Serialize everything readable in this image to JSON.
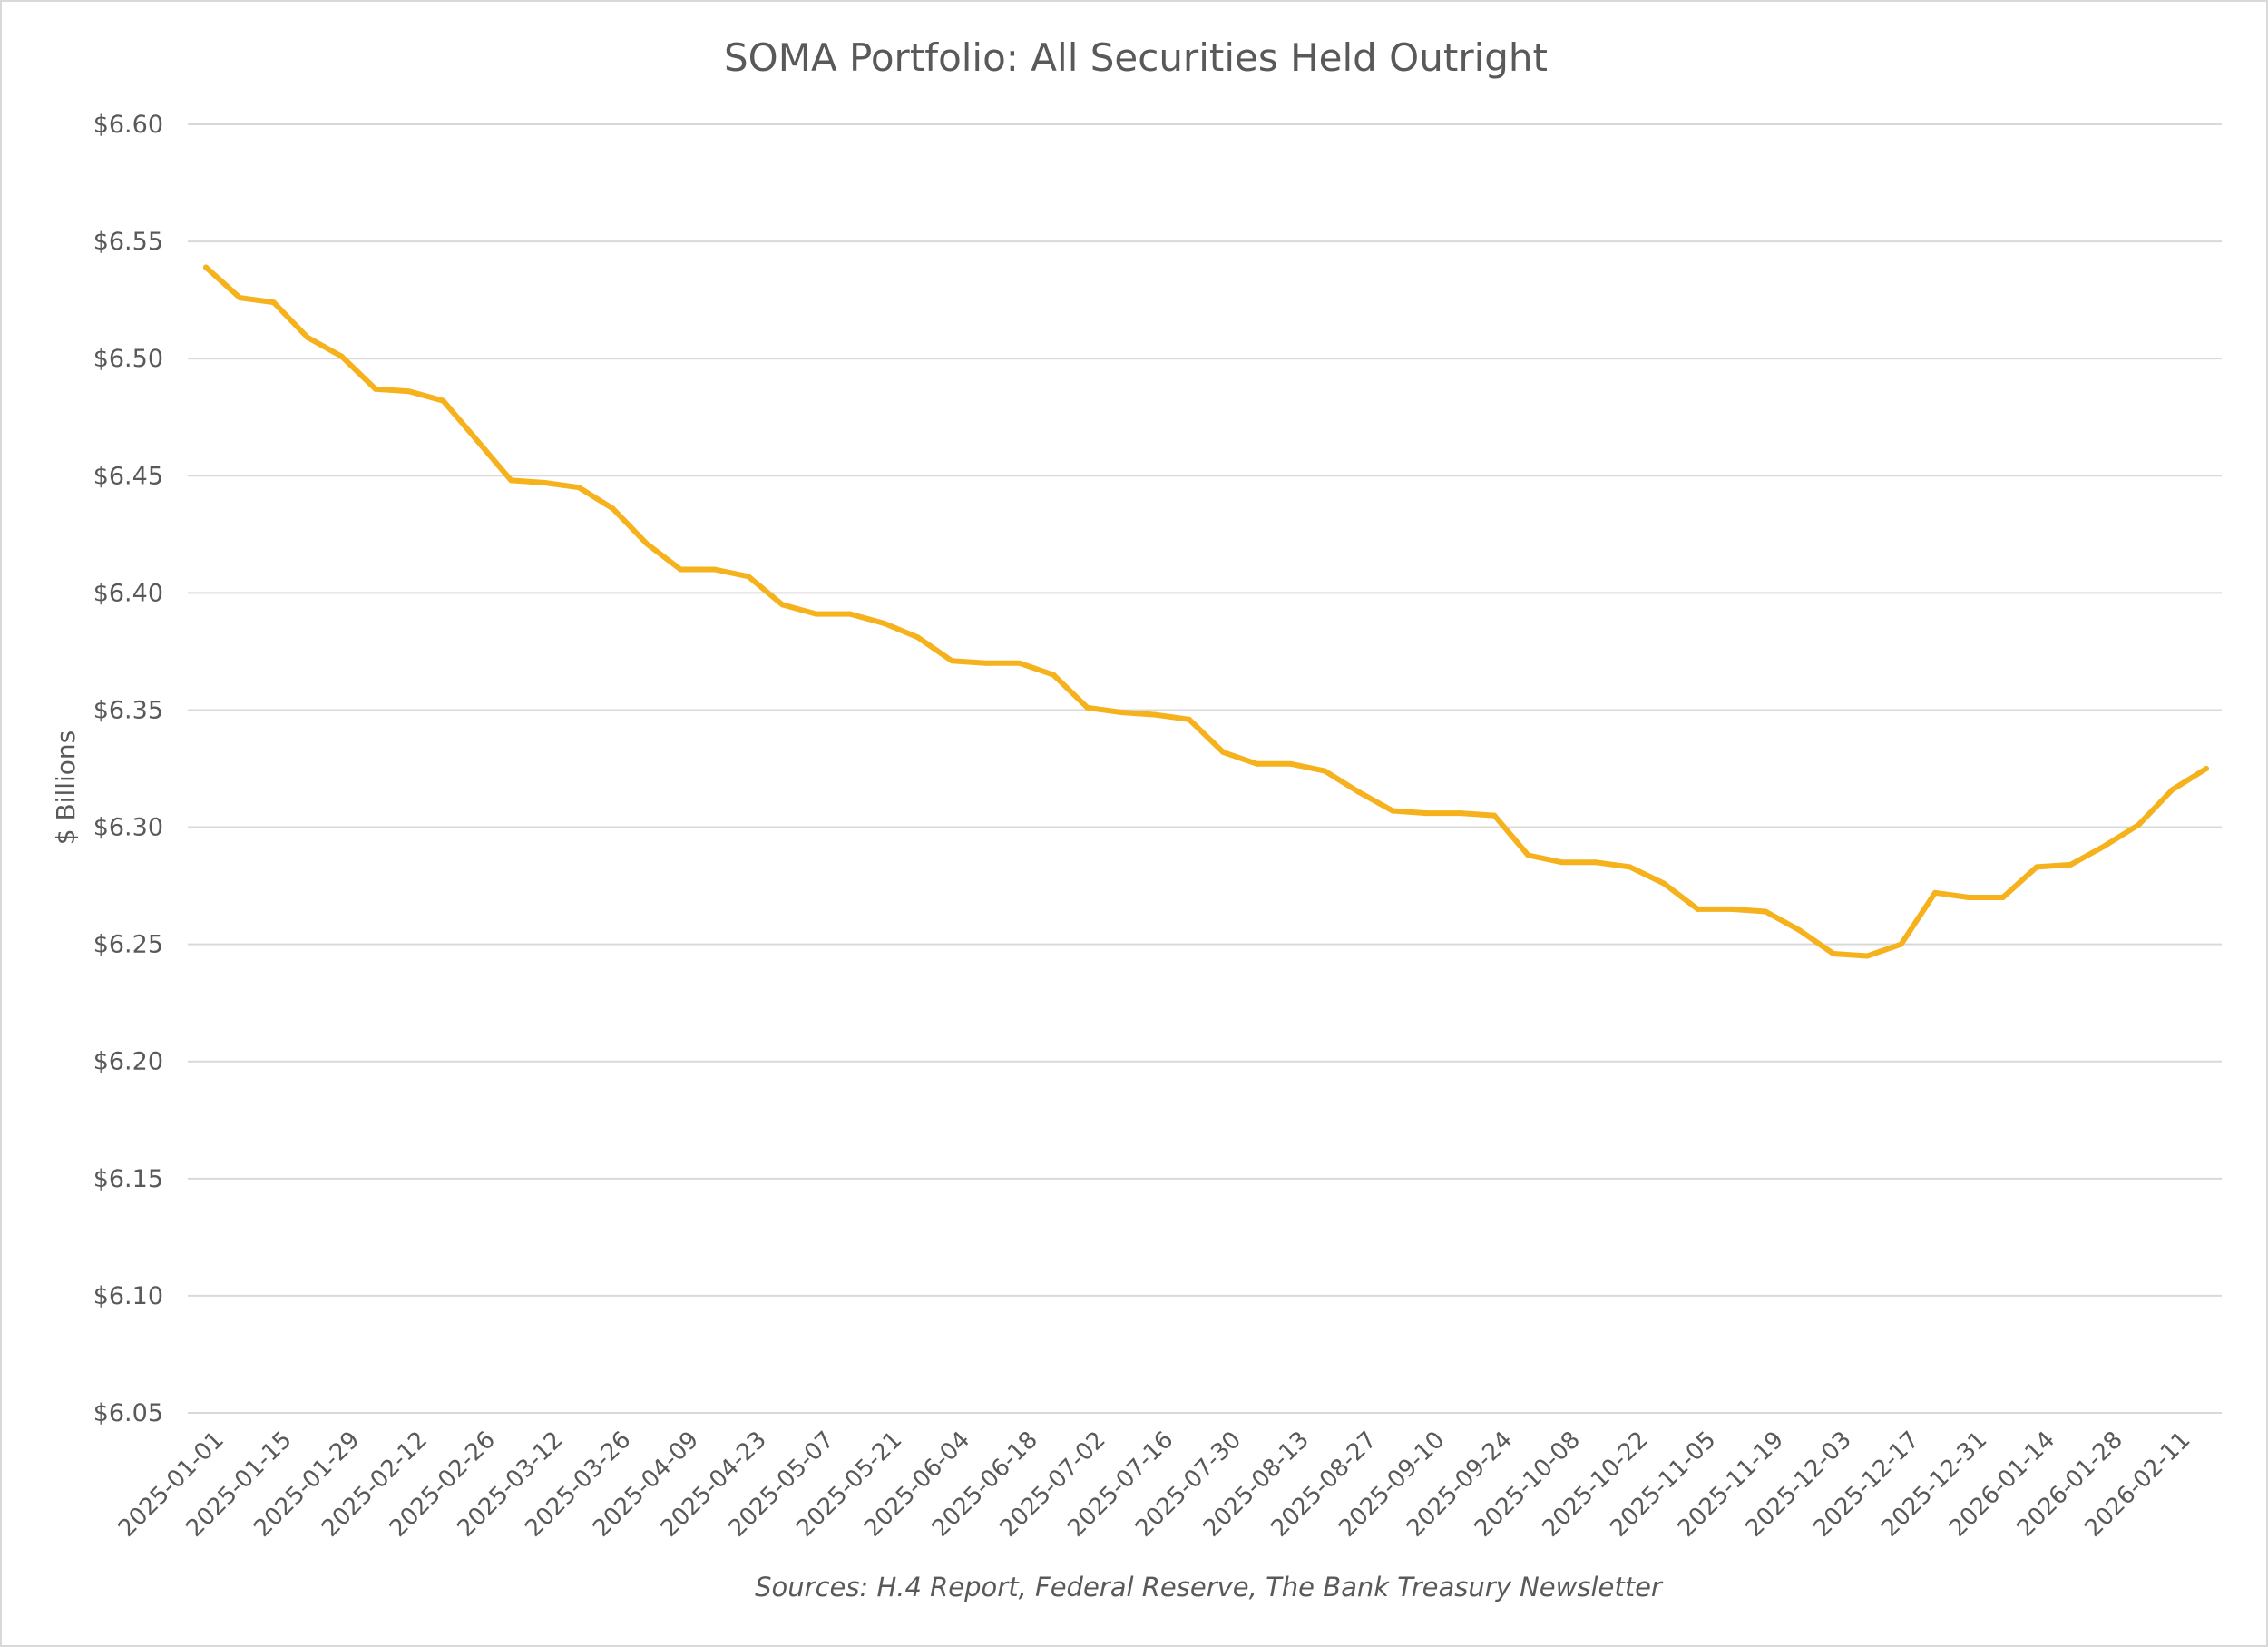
{
  "chart_data": {
    "type": "line",
    "title": "SOMA Portfolio: All Securities Held Outright",
    "xlabel": "",
    "ylabel": "$ Billions",
    "source": "Sources: H.4 Report, Federal Reserve, The Bank Treasury Newsletter",
    "ylim": [
      6.05,
      6.6
    ],
    "yticks": [
      "$6.05",
      "$6.10",
      "$6.15",
      "$6.20",
      "$6.25",
      "$6.30",
      "$6.35",
      "$6.40",
      "$6.45",
      "$6.50",
      "$6.55",
      "$6.60"
    ],
    "ytick_values": [
      6.05,
      6.1,
      6.15,
      6.2,
      6.25,
      6.3,
      6.35,
      6.4,
      6.45,
      6.5,
      6.55,
      6.6
    ],
    "grid": true,
    "line_color": "#f5b21c",
    "xtick_labels": [
      "2025-01-01",
      "2025-01-15",
      "2025-01-29",
      "2025-02-12",
      "2025-02-26",
      "2025-03-12",
      "2025-03-26",
      "2025-04-09",
      "2025-04-23",
      "2025-05-07",
      "2025-05-21",
      "2025-06-04",
      "2025-06-18",
      "2025-07-02",
      "2025-07-16",
      "2025-07-30",
      "2025-08-13",
      "2025-08-27",
      "2025-09-10",
      "2025-09-24",
      "2025-10-08",
      "2025-10-22",
      "2025-11-05",
      "2025-11-19",
      "2025-12-03",
      "2025-12-17",
      "2025-12-31",
      "2026-01-14",
      "2026-01-28",
      "2026-02-11"
    ],
    "series": [
      {
        "name": "All Securities Held Outright",
        "x": [
          "2025-01-01",
          "2025-01-08",
          "2025-01-15",
          "2025-01-22",
          "2025-01-29",
          "2025-02-05",
          "2025-02-12",
          "2025-02-19",
          "2025-02-26",
          "2025-03-05",
          "2025-03-12",
          "2025-03-19",
          "2025-03-26",
          "2025-04-02",
          "2025-04-09",
          "2025-04-16",
          "2025-04-23",
          "2025-04-30",
          "2025-05-07",
          "2025-05-14",
          "2025-05-21",
          "2025-05-28",
          "2025-06-04",
          "2025-06-11",
          "2025-06-18",
          "2025-06-25",
          "2025-07-02",
          "2025-07-09",
          "2025-07-16",
          "2025-07-23",
          "2025-07-30",
          "2025-08-06",
          "2025-08-13",
          "2025-08-20",
          "2025-08-27",
          "2025-09-03",
          "2025-09-10",
          "2025-09-17",
          "2025-09-24",
          "2025-10-01",
          "2025-10-08",
          "2025-10-15",
          "2025-10-22",
          "2025-10-29",
          "2025-11-05",
          "2025-11-12",
          "2025-11-19",
          "2025-11-26",
          "2025-12-03",
          "2025-12-10",
          "2025-12-17",
          "2025-12-24",
          "2025-12-31",
          "2026-01-07",
          "2026-01-14",
          "2026-01-21",
          "2026-01-28",
          "2026-02-04",
          "2026-02-11",
          "2026-02-18"
        ],
        "values": [
          6.539,
          6.526,
          6.524,
          6.509,
          6.501,
          6.487,
          6.486,
          6.482,
          6.465,
          6.448,
          6.447,
          6.445,
          6.436,
          6.421,
          6.41,
          6.41,
          6.407,
          6.395,
          6.391,
          6.391,
          6.387,
          6.381,
          6.371,
          6.37,
          6.37,
          6.365,
          6.351,
          6.349,
          6.348,
          6.346,
          6.332,
          6.327,
          6.327,
          6.324,
          6.315,
          6.307,
          6.306,
          6.306,
          6.305,
          6.288,
          6.285,
          6.285,
          6.283,
          6.276,
          6.265,
          6.265,
          6.264,
          6.256,
          6.246,
          6.245,
          6.25,
          6.272,
          6.27,
          6.27,
          6.283,
          6.284,
          6.292,
          6.301,
          6.316,
          6.325
        ]
      }
    ]
  }
}
